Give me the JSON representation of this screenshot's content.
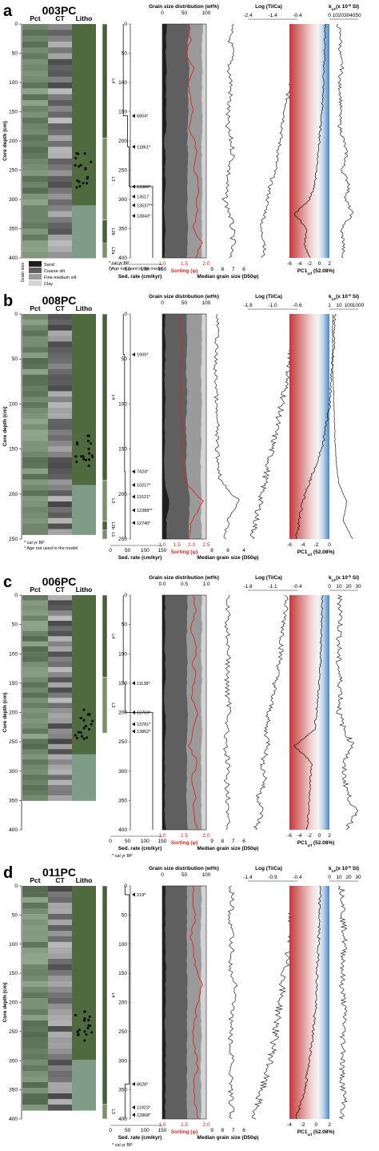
{
  "figure": {
    "column_headers": {
      "pct": "Pct",
      "ct": "CT",
      "litho": "Litho",
      "grain_size": "Grain size distribution (wt%)",
      "log_ti_ca": "Log (Ti/Ca)",
      "kappa": "k",
      "kappa_sub": "LF",
      "kappa_unit": "(x 10",
      "kappa_exp": "-5",
      "kappa_si": " SI)"
    },
    "axis_labels": {
      "depth": "Core depth (cm)",
      "sed_rate": "Sed. rate (cm/kyr)",
      "sorting": "Sorting (φ)",
      "median_grain": "Median grain size (D50φ)",
      "pc1": "PC1",
      "pc1_sub": "xrf",
      "pc1_pct": " (52.08%)"
    },
    "legend": {
      "title": "Grain size",
      "items": [
        "Sand",
        "Coarse silt",
        "Fine-medium silt",
        "Clay"
      ],
      "colors": [
        "#1f1f1f",
        "#5f5f5f",
        "#9a9a9a",
        "#d4d4d4"
      ]
    },
    "footnotes": {
      "cal": "* cal yr BP",
      "not_used": "* Age not used in the model"
    },
    "colors": {
      "sorting_line": "#e0251b",
      "pc1_negative": "#c4373a",
      "pc1_positive": "#4a86c5",
      "litho_units": "#4a5f3f"
    }
  },
  "chart_data": [
    {
      "type": "line",
      "panel": "a",
      "core": "003PC",
      "depth_range": [
        0,
        400
      ],
      "depth_ticks": [
        "0",
        "50",
        "100",
        "150",
        "200",
        "250",
        "300",
        "350",
        "400"
      ],
      "sed_rate_ticks": [
        "0",
        "50",
        "100",
        "150"
      ],
      "grain_ticks": [
        "0",
        "50",
        "100"
      ],
      "sorting_ticks": [
        "1.0",
        "1.5",
        "2.0"
      ],
      "median_ticks": [
        "9",
        "8",
        "7",
        "6"
      ],
      "ti_ca_ticks": [
        "-2.4",
        "-1.4",
        "-0.4"
      ],
      "pc1_ticks": [
        "-6",
        "-4",
        "-2",
        "0",
        "2"
      ],
      "kappa_ticks": [
        "0",
        "10",
        "20",
        "30",
        "40",
        "50"
      ],
      "units": [
        {
          "label": "L4",
          "from": 0,
          "to": 195
        },
        {
          "label": "L3",
          "from": 195,
          "to": 335
        },
        {
          "label": "L2b",
          "from": 335,
          "to": 375
        },
        {
          "label": "L2a",
          "from": 375,
          "to": 400
        }
      ],
      "ages": [
        {
          "depth": 157,
          "label": "6804*"
        },
        {
          "depth": 210,
          "label": "11861*"
        },
        {
          "depth": 278,
          "label": "13380*"
        },
        {
          "depth": 295,
          "label": "13517"
        },
        {
          "depth": 310,
          "label": "13537**"
        },
        {
          "depth": 328,
          "label": "13843*"
        }
      ],
      "sed_rate_steps": [
        {
          "from": 0,
          "to": 157,
          "rate": 12
        },
        {
          "from": 157,
          "to": 210,
          "rate": 32
        },
        {
          "from": 210,
          "to": 278,
          "rate": 40
        },
        {
          "from": 278,
          "to": 400,
          "rate": 150
        }
      ],
      "clay": [
        8,
        9,
        10,
        9,
        9,
        10,
        9,
        9,
        11,
        10,
        10,
        9,
        10,
        11,
        10,
        11,
        11
      ],
      "fine_silt": [
        30,
        32,
        33,
        30,
        31,
        32,
        31,
        33,
        32,
        31,
        33,
        34,
        33,
        32,
        31,
        32,
        33
      ],
      "coarse_silt": [
        26,
        25,
        24,
        26,
        27,
        25,
        26,
        24,
        28,
        27,
        26,
        25,
        27,
        28,
        27,
        26,
        27
      ],
      "sorting": [
        1.6,
        1.65,
        1.55,
        1.7,
        1.6,
        1.65,
        1.7,
        1.6,
        1.75,
        1.8,
        1.7,
        1.85,
        1.75,
        1.8,
        1.7,
        1.9,
        1.75
      ],
      "median": [
        7.2,
        7.3,
        7.1,
        7.4,
        7.2,
        7.3,
        7.5,
        7.6,
        7.2,
        7.0,
        7.4,
        7.6,
        7.8,
        7.3,
        7.1,
        7.0,
        7.4
      ],
      "ti_ca": [
        -0.5,
        -0.55,
        -0.6,
        -0.65,
        -0.7,
        -0.8,
        -0.9,
        -1.0,
        -1.1,
        -1.2,
        -1.3,
        -1.5,
        -1.6,
        -1.7,
        -1.9,
        -1.7,
        -1.8
      ],
      "pc1": [
        1.2,
        1.1,
        1.0,
        0.9,
        0.8,
        0.7,
        0.5,
        0.2,
        0.0,
        -0.3,
        -0.5,
        -1.0,
        -2.0,
        -5.0,
        -2.5,
        -3.0,
        -2.0
      ],
      "kappa": [
        15,
        20,
        18,
        22,
        17,
        20,
        19,
        18,
        25,
        30,
        22,
        35,
        28,
        40,
        20,
        25,
        22
      ]
    },
    {
      "type": "line",
      "panel": "b",
      "core": "008PC",
      "depth_range": [
        0,
        250
      ],
      "depth_ticks": [
        "0",
        "50",
        "100",
        "150",
        "200",
        "250"
      ],
      "sed_rate_ticks": [
        "0",
        "50",
        "100",
        "150"
      ],
      "grain_ticks": [
        "0",
        "50",
        "100"
      ],
      "sorting_ticks": [
        "1.0",
        "1.5",
        "2.0",
        "2.5"
      ],
      "median_ticks": [
        "8",
        "6",
        "4"
      ],
      "ti_ca_ticks": [
        "-1.8",
        "-1.0",
        "-0.6"
      ],
      "pc1_ticks": [
        "-6",
        "-4",
        "-2",
        "0"
      ],
      "kappa_ticks": [
        "1",
        "10",
        "100",
        "1000"
      ],
      "units": [
        {
          "label": "L4",
          "from": 0,
          "to": 185
        },
        {
          "label": "L3",
          "from": 185,
          "to": 230
        },
        {
          "label": "L2b",
          "from": 230,
          "to": 240
        },
        {
          "label": "L1",
          "from": 240,
          "to": 250
        }
      ],
      "ages": [
        {
          "depth": 45,
          "label": "1900*"
        },
        {
          "depth": 175,
          "label": "7424*"
        },
        {
          "depth": 190,
          "label": "10217*"
        },
        {
          "depth": 203,
          "label": "11521*"
        },
        {
          "depth": 218,
          "label": "12388**"
        },
        {
          "depth": 232,
          "label": "12740*"
        }
      ],
      "sed_rate_steps": [
        {
          "from": 0,
          "to": 45,
          "rate": 12
        },
        {
          "from": 45,
          "to": 175,
          "rate": 18
        },
        {
          "from": 175,
          "to": 250,
          "rate": 20
        }
      ],
      "clay": [
        10,
        11,
        10,
        12,
        11,
        10,
        12,
        11,
        13,
        12,
        11,
        12,
        10
      ],
      "fine_silt": [
        34,
        33,
        35,
        34,
        33,
        34,
        35,
        33,
        34,
        30,
        26,
        28,
        30
      ],
      "coarse_silt": [
        24,
        25,
        23,
        24,
        25,
        24,
        23,
        25,
        24,
        27,
        22,
        26,
        25
      ],
      "sorting": [
        1.6,
        1.6,
        1.7,
        1.6,
        1.65,
        1.6,
        1.7,
        1.65,
        1.7,
        1.8,
        2.4,
        2.0,
        1.9
      ],
      "median": [
        7.4,
        7.3,
        7.5,
        7.6,
        7.4,
        7.5,
        7.3,
        7.4,
        7.2,
        6.8,
        4.5,
        6.0,
        6.4
      ],
      "ti_ca": [
        -0.65,
        -0.7,
        -0.75,
        -0.8,
        -0.9,
        -1.0,
        -1.1,
        -1.2,
        -1.3,
        -1.4,
        -1.5,
        -1.6,
        -1.7
      ],
      "pc1": [
        0.8,
        0.7,
        0.6,
        0.4,
        0.2,
        0.0,
        -0.5,
        -1.0,
        -2.0,
        -3.0,
        -4.0,
        -4.5,
        -5.0
      ],
      "kappa": [
        30,
        25,
        30,
        28,
        35,
        40,
        45,
        50,
        60,
        80,
        150,
        120,
        200
      ]
    },
    {
      "type": "line",
      "panel": "c",
      "core": "006PC",
      "depth_range": [
        0,
        400
      ],
      "depth_ticks": [
        "0",
        "50",
        "100",
        "150",
        "200",
        "250",
        "300",
        "350",
        "400"
      ],
      "sed_rate_ticks": [
        "0",
        "50",
        "100",
        "150"
      ],
      "grain_ticks": [
        "0.0",
        "0.5",
        "1.0"
      ],
      "sorting_ticks": [
        "1.0",
        "1.5",
        "2.0"
      ],
      "median_ticks": [
        "9",
        "8",
        "7",
        "6"
      ],
      "ti_ca_ticks": [
        "-1.8",
        "-1.1",
        "-0.4"
      ],
      "pc1_ticks": [
        "-6",
        "-4",
        "-2",
        "0",
        "2"
      ],
      "kappa_ticks": [
        "0",
        "10",
        "20",
        "30"
      ],
      "units": [
        {
          "label": "L4",
          "from": 0,
          "to": 140
        },
        {
          "label": "L3",
          "from": 140,
          "to": 235
        }
      ],
      "ages": [
        {
          "depth": 150,
          "label": "11138*"
        },
        {
          "depth": 200,
          "label": "13769*"
        },
        {
          "depth": 220,
          "label": "13781*"
        },
        {
          "depth": 232,
          "label": "13862*"
        }
      ],
      "sed_rate_steps": [
        {
          "from": 0,
          "to": 150,
          "rate": 12
        },
        {
          "from": 150,
          "to": 200,
          "rate": 20
        },
        {
          "from": 200,
          "to": 400,
          "rate": 150
        }
      ],
      "clay": [
        10,
        11,
        10,
        12,
        11,
        10,
        12,
        11,
        10,
        11,
        12,
        11,
        12,
        11,
        10
      ],
      "fine_silt": [
        33,
        32,
        34,
        33,
        32,
        34,
        33,
        31,
        33,
        34,
        32,
        33,
        34,
        33,
        32
      ],
      "coarse_silt": [
        25,
        26,
        24,
        26,
        25,
        24,
        26,
        27,
        24,
        25,
        26,
        25,
        24,
        26,
        25
      ],
      "sorting": [
        1.7,
        1.75,
        1.65,
        1.8,
        1.7,
        1.75,
        1.65,
        1.8,
        1.7,
        1.6,
        1.8,
        1.65,
        1.75,
        1.7,
        1.8
      ],
      "median": [
        7.6,
        7.5,
        7.6,
        7.4,
        7.5,
        7.6,
        7.5,
        7.3,
        7.6,
        7.8,
        7.5,
        7.7,
        7.4,
        7.6,
        7.5
      ],
      "ti_ca": [
        -0.7,
        -0.75,
        -0.8,
        -0.85,
        -0.9,
        -1.0,
        -1.1,
        -1.2,
        -1.3,
        -1.2,
        -1.4,
        -1.3,
        -1.5,
        -1.4,
        -1.6
      ],
      "pc1": [
        0.6,
        0.5,
        0.4,
        0.3,
        0.2,
        0.0,
        -0.3,
        -0.6,
        -1.0,
        -5.0,
        -1.5,
        -1.8,
        -2.0,
        -2.2,
        -2.5
      ],
      "kappa": [
        10,
        12,
        11,
        10,
        9,
        11,
        12,
        10,
        15,
        25,
        14,
        16,
        20,
        28,
        18
      ]
    },
    {
      "type": "line",
      "panel": "d",
      "core": "011PC",
      "depth_range": [
        0,
        400
      ],
      "depth_ticks": [
        "0",
        "50",
        "100",
        "150",
        "200",
        "250",
        "300",
        "350",
        "400"
      ],
      "sed_rate_ticks": [
        "0",
        "50",
        "100",
        "150"
      ],
      "grain_ticks": [
        "0",
        "50",
        "100"
      ],
      "sorting_ticks": [
        "1.0",
        "1.5",
        "2.0"
      ],
      "median_ticks": [
        "9",
        "8",
        "7",
        "6"
      ],
      "ti_ca_ticks": [
        "-1.4",
        "-0.9",
        "-0.4"
      ],
      "pc1_ticks": [
        "-4",
        "-2",
        "0",
        "2"
      ],
      "kappa_ticks": [
        "0",
        "10",
        "20",
        "30"
      ],
      "units": [
        {
          "label": "L4",
          "from": 0,
          "to": 375
        },
        {
          "label": "L3",
          "from": 375,
          "to": 400
        }
      ],
      "ages": [
        {
          "depth": 15,
          "label": "219*"
        },
        {
          "depth": 340,
          "label": "8628*"
        },
        {
          "depth": 380,
          "label": "11923*"
        },
        {
          "depth": 393,
          "label": "12868*"
        }
      ],
      "sed_rate_steps": [
        {
          "from": 0,
          "to": 15,
          "rate": 20
        },
        {
          "from": 15,
          "to": 340,
          "rate": 40
        },
        {
          "from": 340,
          "to": 400,
          "rate": 20
        }
      ],
      "clay": [
        12,
        11,
        12,
        13,
        12,
        11,
        12,
        13,
        12,
        11,
        12,
        13,
        12,
        11,
        12
      ],
      "fine_silt": [
        32,
        33,
        32,
        31,
        32,
        33,
        31,
        30,
        32,
        33,
        32,
        31,
        32,
        33,
        32
      ],
      "coarse_silt": [
        24,
        25,
        24,
        25,
        24,
        23,
        25,
        24,
        25,
        24,
        23,
        25,
        24,
        25,
        24
      ],
      "sorting": [
        1.7,
        1.7,
        1.75,
        1.65,
        1.7,
        1.75,
        1.9,
        1.8,
        1.75,
        1.7,
        1.75,
        1.8,
        1.7,
        1.75,
        1.8
      ],
      "median": [
        7.2,
        7.1,
        7.3,
        7.2,
        7.1,
        7.3,
        6.8,
        7.0,
        7.2,
        7.3,
        7.2,
        7.1,
        7.3,
        7.2,
        7.1
      ],
      "ti_ca": [
        -0.5,
        -0.45,
        -0.55,
        -0.5,
        -0.6,
        -0.65,
        -0.7,
        -0.75,
        -0.8,
        -0.85,
        -0.9,
        -1.0,
        -1.1,
        -1.2,
        -1.3
      ],
      "pc1": [
        0.6,
        0.5,
        0.5,
        0.4,
        0.3,
        0.2,
        0.1,
        0.0,
        -0.3,
        -0.5,
        -0.8,
        -1.2,
        -1.6,
        -2.2,
        -3.0
      ],
      "kappa": [
        12,
        15,
        14,
        16,
        15,
        14,
        13,
        15,
        16,
        14,
        15,
        13,
        14,
        16,
        12
      ]
    }
  ]
}
